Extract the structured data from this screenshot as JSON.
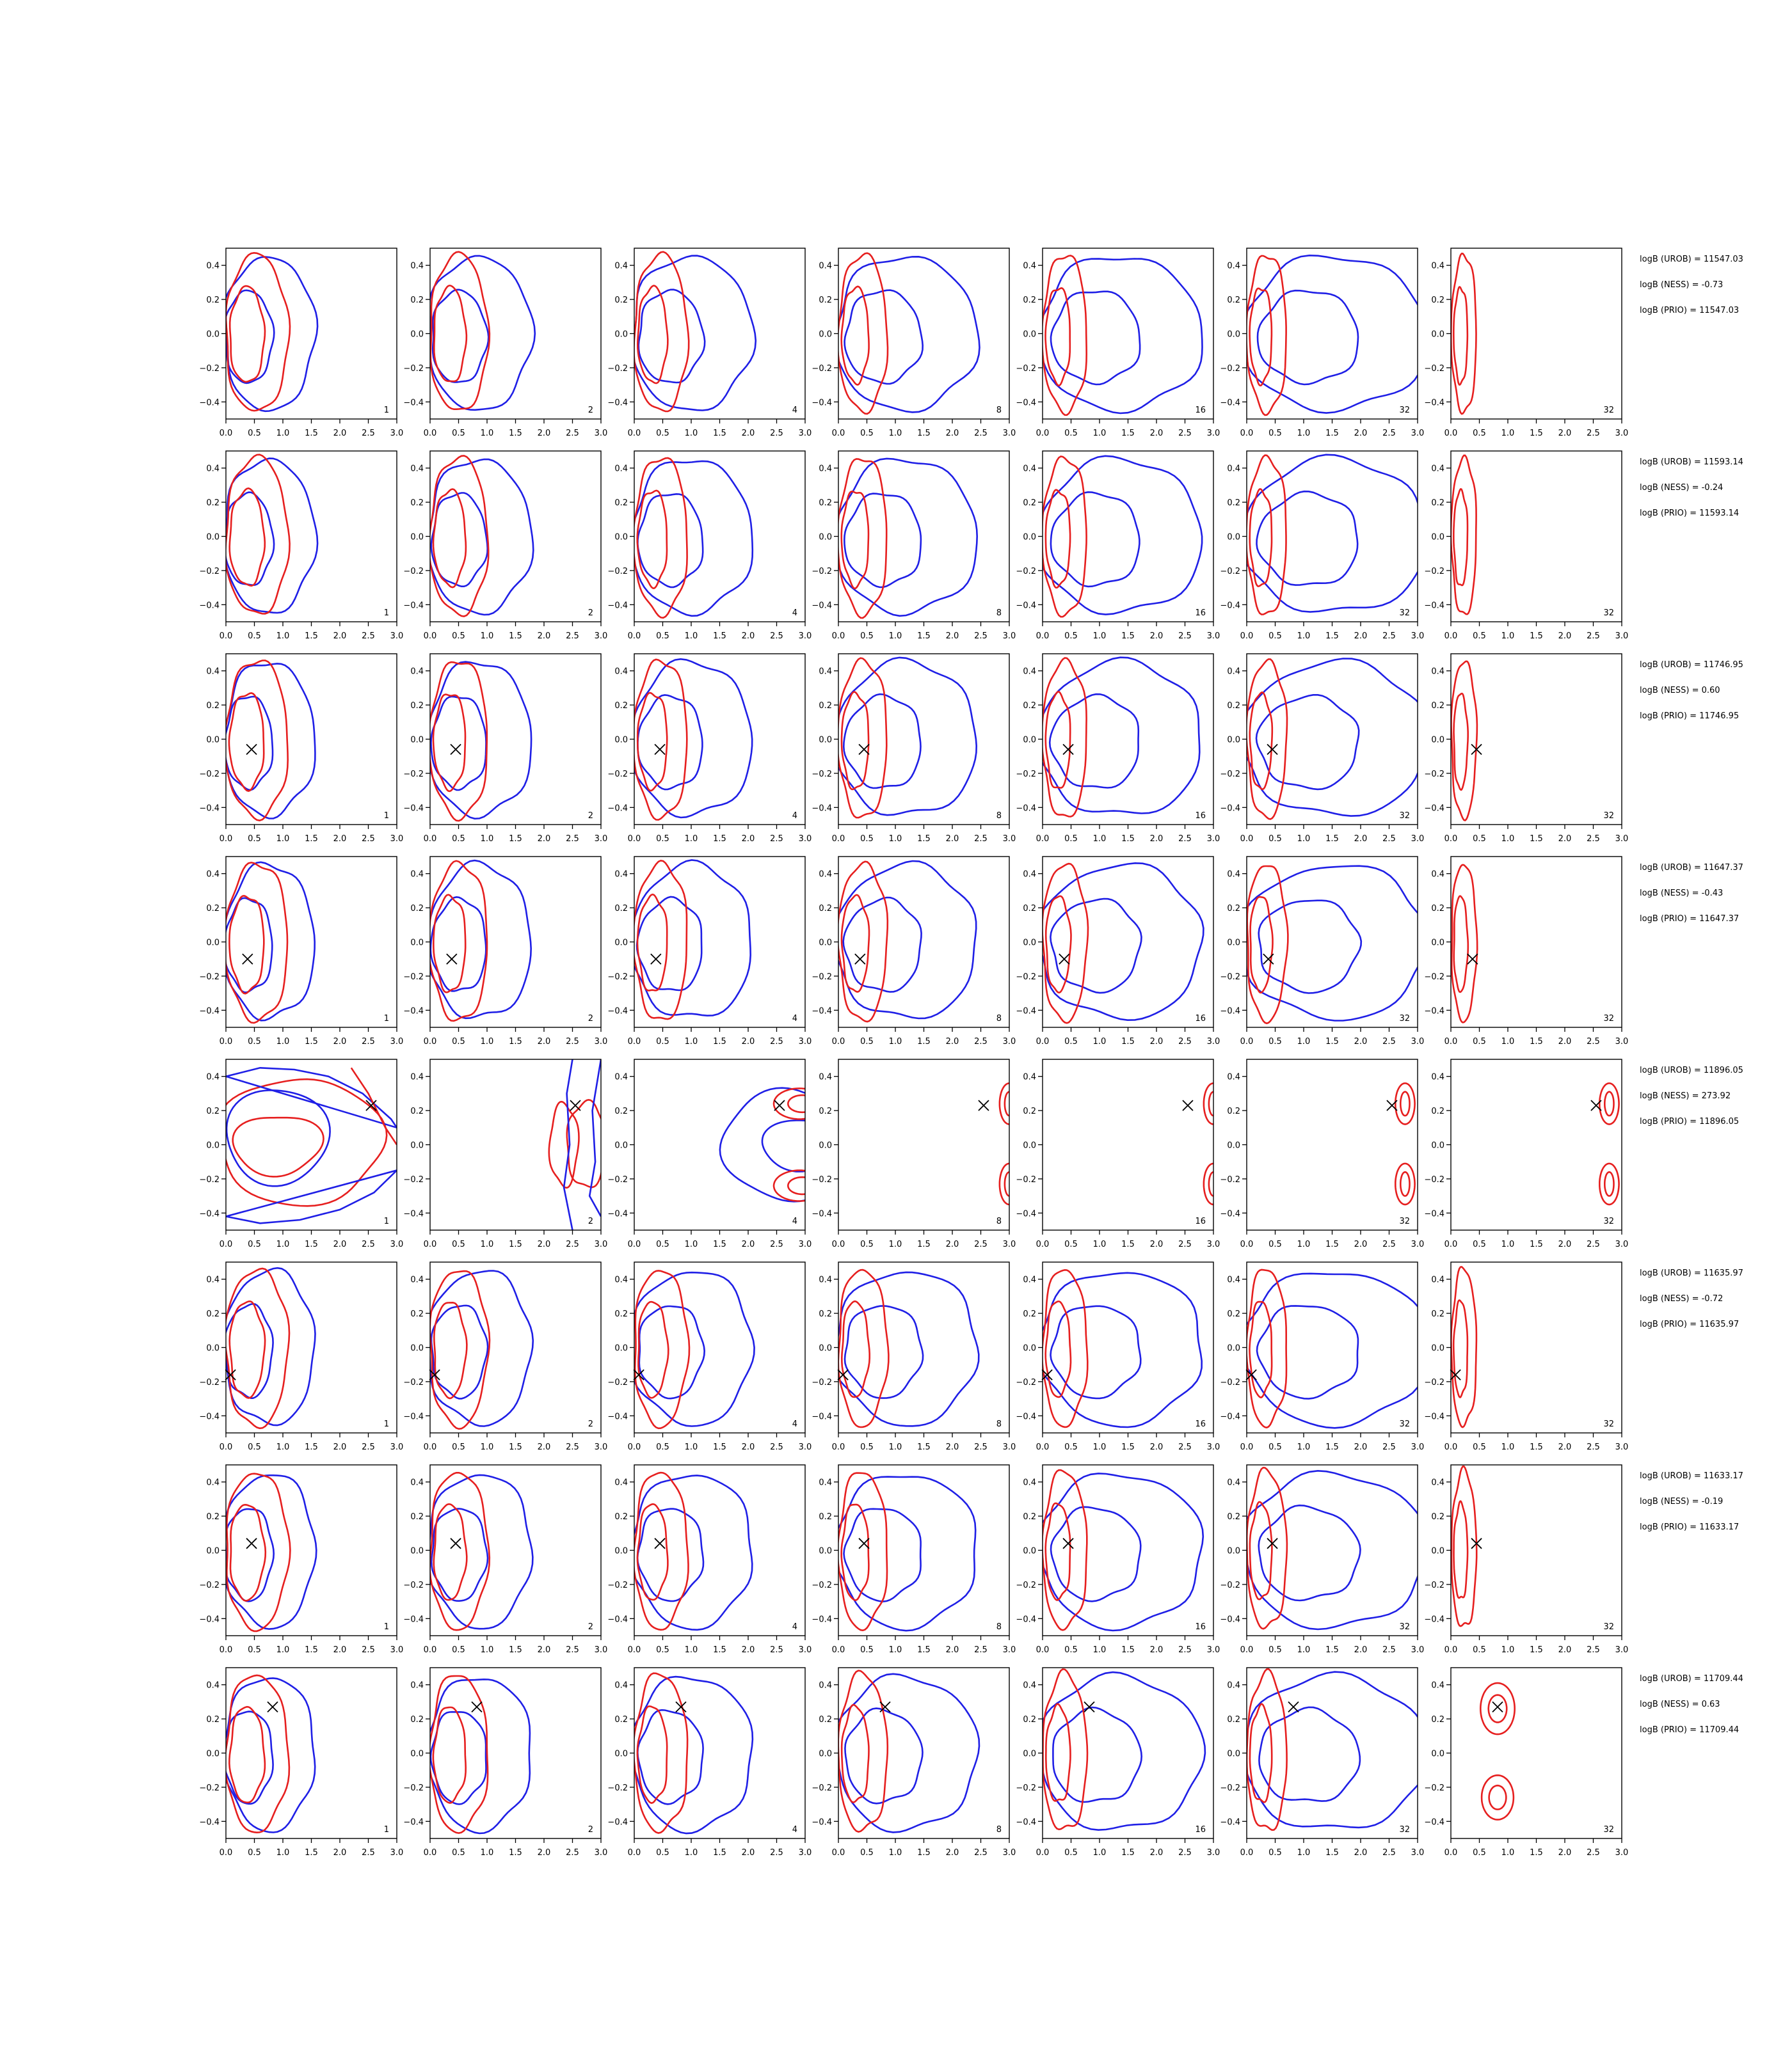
{
  "chart_data": {
    "type": "contour",
    "layout": "8 rows x 7 panel grid with a text annotation column",
    "xlim": [
      0.0,
      3.0
    ],
    "ylim": [
      -0.5,
      0.5
    ],
    "xticks": [
      "0.0",
      "0.5",
      "1.0",
      "1.5",
      "2.0",
      "2.5",
      "3.0"
    ],
    "yticks": [
      "0.4",
      "0.2",
      "0.0",
      "−0.2",
      "−0.4"
    ],
    "grid": false,
    "series_colors": {
      "blue": "#1f1fe6",
      "red": "#e61f1f"
    },
    "marker": "x",
    "panel_labels": [
      "1",
      "2",
      "4",
      "8",
      "16",
      "32",
      "32"
    ],
    "rows": [
      {
        "marker": null,
        "annotations": [
          "logB (UROB) = 11547.03",
          "logB (NESS) = -0.73",
          "logB (PRIO) = 11547.03"
        ]
      },
      {
        "marker": null,
        "annotations": [
          "logB (UROB) = 11593.14",
          "logB (NESS) = -0.24",
          "logB (PRIO) = 11593.14"
        ]
      },
      {
        "marker": [
          0.45,
          -0.06
        ],
        "annotations": [
          "logB (UROB) = 11746.95",
          "logB (NESS) = 0.60",
          "logB (PRIO) = 11746.95"
        ]
      },
      {
        "marker": [
          0.38,
          -0.1
        ],
        "annotations": [
          "logB (UROB) = 11647.37",
          "logB (NESS) = -0.43",
          "logB (PRIO) = 11647.37"
        ]
      },
      {
        "marker": [
          2.55,
          0.23
        ],
        "annotations": [
          "logB (UROB) = 11896.05",
          "logB (NESS) = 273.92",
          "logB (PRIO) = 11896.05"
        ]
      },
      {
        "marker": [
          0.08,
          -0.16
        ],
        "annotations": [
          "logB (UROB) = 11635.97",
          "logB (NESS) = -0.72",
          "logB (PRIO) = 11635.97"
        ]
      },
      {
        "marker": [
          0.45,
          0.04
        ],
        "annotations": [
          "logB (UROB) = 11633.17",
          "logB (NESS) = -0.19",
          "logB (PRIO) = 11633.17"
        ]
      },
      {
        "marker": [
          0.82,
          0.27
        ],
        "annotations": [
          "logB (UROB) = 11709.44",
          "logB (NESS) = 0.63",
          "logB (PRIO) = 11709.44"
        ]
      }
    ]
  }
}
